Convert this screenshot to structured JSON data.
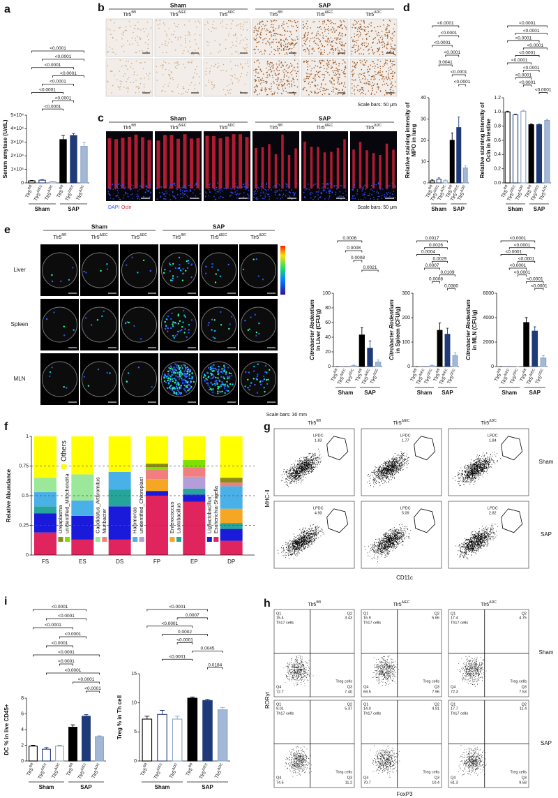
{
  "panel_letters": [
    "a",
    "b",
    "c",
    "d",
    "e",
    "f",
    "g",
    "h",
    "i"
  ],
  "histology_b": {
    "groups": [
      "Sham",
      "SAP"
    ],
    "columns": [
      "Tlr5fl/fl",
      "Tlr5ΔIEC",
      "Tlr5ΔDC",
      "Tlr5fl/fl",
      "Tlr5ΔIEC",
      "Tlr5ΔDC"
    ],
    "scale": "Scale bars: 50 μm"
  },
  "histology_c": {
    "groups": [
      "Sham",
      "SAP"
    ],
    "columns": [
      "Tlr5fl/fl",
      "Tlr5ΔIEC",
      "Tlr5ΔDC",
      "Tlr5fl/fl",
      "Tlr5ΔIEC",
      "Tlr5ΔDC"
    ],
    "stains": [
      "DAPI",
      "Ocln"
    ],
    "scale": "Scale bars: 50 μm"
  },
  "imaging": {
    "groups": [
      "Sham",
      "SAP"
    ],
    "columns": [
      "Tlr5fl/fl",
      "Tlr5ΔIEC",
      "Tlr5ΔDC",
      "Tlr5fl/fl",
      "Tlr5ΔIEC",
      "Tlr5ΔDC"
    ],
    "rows": [
      "Liver",
      "Spleen",
      "MLN"
    ],
    "scale": "Scale bars: 30 mm"
  },
  "flow_g": {
    "columns": [
      "Tlr5fl/fl",
      "Tlr5ΔIEC",
      "Tlr5ΔDC"
    ],
    "rows": [
      "Sham",
      "SAP"
    ],
    "gate": "LPDC",
    "values": [
      "1.83",
      "1.77",
      "1.84",
      "4.90",
      "5.09",
      "2.82"
    ],
    "xlabel": "CD11c",
    "ylabel": "MHC-II"
  },
  "flow_h": {
    "columns": [
      "Tlr5fl/fl",
      "Tlr5ΔIEC",
      "Tlr5ΔDC"
    ],
    "rows": [
      "Sham",
      "SAP"
    ],
    "quadrants": [
      "Q1",
      "Q2",
      "Q3",
      "Q4"
    ],
    "populations": [
      "Th17 cells",
      "Treg cells"
    ],
    "values": [
      [
        "15.4",
        "3.43",
        "7.40",
        "72.7"
      ],
      [
        "16.9",
        "5.66",
        "7.96",
        "69.5"
      ],
      [
        "17.4",
        "4.75",
        "7.53",
        "72.3"
      ],
      [
        "9.01",
        "5.37",
        "11.2",
        "74.5"
      ],
      [
        "14.0",
        "4.91",
        "10.4",
        "70.7"
      ],
      [
        "17.7",
        "11.4",
        "9.58",
        "61.3"
      ]
    ],
    "xlabel": "FoxP3",
    "ylabel": "RORγt"
  },
  "chart_data": [
    {
      "type": "bar",
      "ylabel": [
        "Serum amylase (U/dL)"
      ],
      "categories": [
        "Tlr5fl/fl",
        "Tlr5ΔIEC",
        "Tlr5ΔDC",
        "Tlr5fl/fl",
        "Tlr5ΔIEC",
        "Tlr5ΔDC"
      ],
      "groups": [
        "Sham",
        "SAP"
      ],
      "values": [
        1500,
        2000,
        1000,
        32000,
        35000,
        27000
      ],
      "errors": [
        300,
        500,
        300,
        3000,
        1500,
        3000
      ],
      "fills": [
        "#ffffff",
        "#ffffff",
        "#ffffff",
        "#000000",
        "#1f3a78",
        "#a3b8d6"
      ],
      "strokes": [
        "#000000",
        "#1f3a78",
        "#8aa4c8",
        "#000000",
        "#1f3a78",
        "#8aa4c8"
      ],
      "ylim": [
        0,
        50000
      ],
      "yticks": [
        0,
        {
          "value": 10000,
          "label": "1×10⁴"
        },
        {
          "value": 20000,
          "label": "2×10⁴"
        },
        {
          "value": 30000,
          "label": "3×10⁴"
        },
        {
          "value": 40000,
          "label": "4×10⁴"
        },
        {
          "value": 50000,
          "label": "5×10⁴"
        }
      ],
      "annotations": [
        {
          "from": 0,
          "to": 5,
          "label": "<0.0001"
        },
        {
          "from": 1,
          "to": 5,
          "label": "<0.0001"
        },
        {
          "from": 0,
          "to": 4,
          "label": "<0.0001"
        },
        {
          "from": 2,
          "to": 5,
          "label": "<0.0001"
        },
        {
          "from": 1,
          "to": 4,
          "label": "<0.0001"
        },
        {
          "from": 0,
          "to": 3,
          "label": "<0.0001"
        },
        {
          "from": 2,
          "to": 4,
          "label": "<0.0001"
        },
        {
          "from": 1,
          "to": 3,
          "label": "<0.0001"
        }
      ]
    },
    {
      "type": "bar",
      "ylabel": [
        "Relative staining intensity of",
        "MPO in lung"
      ],
      "categories": [
        "Tlr5fl/fl",
        "Tlr5ΔIEC",
        "Tlr5ΔDC",
        "Tlr5fl/fl",
        "Tlr5ΔIEC",
        "Tlr5ΔDC"
      ],
      "groups": [
        "Sham",
        "SAP"
      ],
      "values": [
        1,
        1.8,
        1,
        20,
        26,
        7
      ],
      "errors": [
        0.5,
        0.6,
        0.4,
        3.5,
        5,
        1
      ],
      "fills": [
        "#ffffff",
        "#ffffff",
        "#ffffff",
        "#000000",
        "#1f3a78",
        "#a3b8d6"
      ],
      "strokes": [
        "#000000",
        "#1f3a78",
        "#8aa4c8",
        "#000000",
        "#1f3a78",
        "#8aa4c8"
      ],
      "ylim": [
        0,
        40
      ],
      "yticks": [
        0,
        10,
        20,
        30,
        40
      ],
      "annotations": [
        {
          "from": 0,
          "to": 4,
          "label": "<0.0001"
        },
        {
          "from": 1,
          "to": 4,
          "label": "<0.0001"
        },
        {
          "from": 0,
          "to": 3,
          "label": "<0.0001"
        },
        {
          "from": 2,
          "to": 4,
          "label": "<0.0001"
        },
        {
          "from": 1,
          "to": 3,
          "label": "0.0041"
        },
        {
          "from": 3,
          "to": 5,
          "label": "<0.0001"
        },
        {
          "from": 4,
          "to": 5,
          "label": "<0.0001"
        }
      ]
    },
    {
      "type": "bar",
      "ylabel": [
        "Relative staining intensity of",
        "Ocln in intestine"
      ],
      "categories": [
        "Tlr5fl/fl",
        "Tlr5ΔIEC",
        "Tlr5ΔDC",
        "Tlr5fl/fl",
        "Tlr5ΔIEC",
        "Tlr5ΔDC"
      ],
      "groups": [
        "Sham",
        "SAP"
      ],
      "values": [
        1.0,
        0.96,
        1.01,
        0.82,
        0.82,
        0.88
      ],
      "errors": [
        0.01,
        0.01,
        0.015,
        0.01,
        0.01,
        0.015
      ],
      "fills": [
        "#ffffff",
        "#ffffff",
        "#ffffff",
        "#000000",
        "#1f3a78",
        "#a3b8d6"
      ],
      "strokes": [
        "#000000",
        "#1f3a78",
        "#8aa4c8",
        "#000000",
        "#1f3a78",
        "#8aa4c8"
      ],
      "ylim": [
        0,
        1.2
      ],
      "yticks": [
        {
          "value": 0,
          "label": "0.0"
        },
        0.2,
        0.4,
        0.6,
        0.8,
        {
          "value": 1,
          "label": "1.0"
        },
        1.2
      ],
      "annotations": [
        {
          "from": 0,
          "to": 5,
          "label": "<0.0001"
        },
        {
          "from": 1,
          "to": 5,
          "label": "<0.0001"
        },
        {
          "from": 0,
          "to": 4,
          "label": "<0.0001"
        },
        {
          "from": 2,
          "to": 5,
          "label": "<0.0001"
        },
        {
          "from": 1,
          "to": 4,
          "label": "<0.0001"
        },
        {
          "from": 0,
          "to": 3,
          "label": "<0.0001"
        },
        {
          "from": 2,
          "to": 4,
          "label": "<0.0001"
        },
        {
          "from": 1,
          "to": 3,
          "label": "<0.0001"
        },
        {
          "from": 2,
          "to": 3,
          "label": "<0.0001"
        },
        {
          "from": 4,
          "to": 5,
          "label": "<0.0001"
        }
      ]
    },
    {
      "type": "bar",
      "ylabel": [
        "Citrobacter Rodentium",
        "in Liver (CFU/g)"
      ],
      "categories": [
        "Tlr5fl/fl",
        "Tlr5ΔIEC",
        "Tlr5ΔDC",
        "Tlr5fl/fl",
        "Tlr5ΔIEC",
        "Tlr5ΔDC"
      ],
      "groups": [
        "Sham",
        "SAP"
      ],
      "values": [
        0,
        0,
        1,
        43,
        25,
        6
      ],
      "errors": [
        0,
        0,
        1,
        10,
        10,
        3
      ],
      "fills": [
        "#ffffff",
        "#ffffff",
        "#ffffff",
        "#000000",
        "#1f3a78",
        "#a3b8d6"
      ],
      "strokes": [
        "#000000",
        "#1f3a78",
        "#8aa4c8",
        "#000000",
        "#1f3a78",
        "#8aa4c8"
      ],
      "ylim": [
        0,
        100
      ],
      "yticks": [
        0,
        20,
        40,
        60,
        80,
        100
      ],
      "annotations": [
        {
          "from": 0,
          "to": 3,
          "label": "0.0006"
        },
        {
          "from": 1,
          "to": 3,
          "label": "0.0008"
        },
        {
          "from": 2,
          "to": 3,
          "label": "0.0008"
        },
        {
          "from": 3,
          "to": 5,
          "label": "0.0021"
        }
      ]
    },
    {
      "type": "bar",
      "ylabel": [
        "Citrobacter Rodentium",
        "in Spleen (CFU/g)"
      ],
      "categories": [
        "Tlr5fl/fl",
        "Tlr5ΔIEC",
        "Tlr5ΔDC",
        "Tlr5fl/fl",
        "Tlr5ΔIEC",
        "Tlr5ΔDC"
      ],
      "groups": [
        "Sham",
        "SAP"
      ],
      "values": [
        0,
        0,
        3,
        148,
        132,
        45
      ],
      "errors": [
        0,
        0,
        3,
        30,
        25,
        12
      ],
      "fills": [
        "#ffffff",
        "#ffffff",
        "#ffffff",
        "#000000",
        "#1f3a78",
        "#a3b8d6"
      ],
      "strokes": [
        "#000000",
        "#1f3a78",
        "#8aa4c8",
        "#000000",
        "#1f3a78",
        "#8aa4c8"
      ],
      "ylim": [
        0,
        300
      ],
      "yticks": [
        0,
        100,
        200,
        300
      ],
      "annotations": [
        {
          "from": 0,
          "to": 4,
          "label": "0.0017"
        },
        {
          "from": 1,
          "to": 4,
          "label": "0.0026"
        },
        {
          "from": 0,
          "to": 3,
          "label": "0.0004"
        },
        {
          "from": 2,
          "to": 4,
          "label": "0.0029"
        },
        {
          "from": 1,
          "to": 3,
          "label": "0.0007"
        },
        {
          "from": 3,
          "to": 5,
          "label": "0.0109"
        },
        {
          "from": 2,
          "to": 3,
          "label": "0.0008"
        },
        {
          "from": 4,
          "to": 5,
          "label": "0.0380"
        }
      ]
    },
    {
      "type": "bar",
      "ylabel": [
        "Citrobacter Rodentium",
        "in MLN (CFU/g)"
      ],
      "categories": [
        "Tlr5fl/fl",
        "Tlr5ΔIEC",
        "Tlr5ΔDC",
        "Tlr5fl/fl",
        "Tlr5ΔIEC",
        "Tlr5ΔDC"
      ],
      "groups": [
        "Sham",
        "SAP"
      ],
      "values": [
        0,
        0,
        0,
        3600,
        2900,
        700
      ],
      "errors": [
        0,
        0,
        0,
        400,
        350,
        200
      ],
      "fills": [
        "#ffffff",
        "#ffffff",
        "#ffffff",
        "#000000",
        "#1f3a78",
        "#a3b8d6"
      ],
      "strokes": [
        "#000000",
        "#1f3a78",
        "#8aa4c8",
        "#000000",
        "#1f3a78",
        "#8aa4c8"
      ],
      "ylim": [
        0,
        6000
      ],
      "yticks": [
        0,
        2000,
        4000,
        6000
      ],
      "annotations": [
        {
          "from": 0,
          "to": 4,
          "label": "<0.0001"
        },
        {
          "from": 1,
          "to": 4,
          "label": "<0.0001"
        },
        {
          "from": 0,
          "to": 3,
          "label": "<0.0001"
        },
        {
          "from": 2,
          "to": 4,
          "label": "<0.0001"
        },
        {
          "from": 1,
          "to": 3,
          "label": "<0.0001"
        },
        {
          "from": 2,
          "to": 3,
          "label": "<0.0001"
        },
        {
          "from": 3,
          "to": 5,
          "label": "<0.0001"
        },
        {
          "from": 4,
          "to": 5,
          "label": "<0.0001"
        }
      ]
    },
    {
      "type": "stacked_bar",
      "ylabel": [
        "Relative Abundance"
      ],
      "categories": [
        "FS",
        "ES",
        "DS",
        "FP",
        "EP",
        "DP"
      ],
      "ylim": [
        0,
        1
      ],
      "yticks": [
        0,
        0.25,
        0.5,
        0.75,
        1
      ],
      "grid": true,
      "series": [
        {
          "name": "Escherichia-Shigella",
          "color": "#e0245e",
          "values": [
            0.19,
            0.13,
            0.13,
            0.5,
            0.45,
            0.12
          ]
        },
        {
          "name": "Ligilactobacillus",
          "color": "#1a1adb",
          "values": [
            0.16,
            0.2,
            0.28,
            0.04,
            0.06,
            0.1
          ]
        },
        {
          "name": "Lactobacillus",
          "color": "#26a69a",
          "values": [
            0.06,
            0,
            0.14,
            0,
            0.05,
            0.05
          ]
        },
        {
          "name": "Enterococcus",
          "color": "#f5a623",
          "values": [
            0,
            0,
            0,
            0.1,
            0,
            0.12
          ]
        },
        {
          "name": "unidentified_Chloroplast",
          "color": "#b39ddb",
          "values": [
            0,
            0,
            0,
            0,
            0.1,
            0
          ]
        },
        {
          "name": "Halomonas",
          "color": "#4ab0e8",
          "values": [
            0.12,
            0.13,
            0.15,
            0,
            0,
            0.19
          ]
        },
        {
          "name": "Muribacter",
          "color": "#f08080",
          "values": [
            0,
            0,
            0,
            0.08,
            0.08,
            0.03
          ]
        },
        {
          "name": "Candidatus_Arthromitus",
          "color": "#9be89b",
          "values": [
            0.12,
            0.22,
            0,
            0,
            0,
            0
          ]
        },
        {
          "name": "unidentified_Mitochondria",
          "color": "#7fe000",
          "values": [
            0,
            0,
            0,
            0.02,
            0.06,
            0
          ]
        },
        {
          "name": "Ureaplasma",
          "color": "#8b8b1a",
          "values": [
            0,
            0,
            0,
            0.03,
            0,
            0.04
          ]
        },
        {
          "name": "Others",
          "color": "#ffff00",
          "values": [
            0.35,
            0.32,
            0.3,
            0.23,
            0.2,
            0.35
          ]
        }
      ]
    },
    {
      "type": "bar",
      "ylabel": [
        "DC % in live CD45+"
      ],
      "categories": [
        "Tlr5fl/fl",
        "Tlr5ΔIEC",
        "Tlr5ΔDC",
        "Tlr5fl/fl",
        "Tlr5ΔIEC",
        "Tlr5ΔDC"
      ],
      "groups": [
        "Sham",
        "SAP"
      ],
      "values": [
        1.9,
        1.5,
        1.9,
        4.3,
        5.7,
        3.1
      ],
      "errors": [
        0.1,
        0.2,
        0.1,
        0.3,
        0.2,
        0.1
      ],
      "fills": [
        "#ffffff",
        "#ffffff",
        "#ffffff",
        "#000000",
        "#1f3a78",
        "#a3b8d6"
      ],
      "strokes": [
        "#000000",
        "#1f3a78",
        "#8aa4c8",
        "#000000",
        "#1f3a78",
        "#8aa4c8"
      ],
      "ylim": [
        0,
        8
      ],
      "yticks": [
        0,
        2,
        4,
        6,
        8
      ],
      "annotations": [
        {
          "from": 0,
          "to": 4,
          "label": "<0.0001"
        },
        {
          "from": 1,
          "to": 4,
          "label": "<0.0001"
        },
        {
          "from": 0,
          "to": 3,
          "label": "<0.0001"
        },
        {
          "from": 2,
          "to": 4,
          "label": "<0.0001"
        },
        {
          "from": 1,
          "to": 3,
          "label": "<0.0001"
        },
        {
          "from": 0,
          "to": 5,
          "label": "<0.0001"
        },
        {
          "from": 2,
          "to": 3,
          "label": "<0.0001"
        },
        {
          "from": 1,
          "to": 5,
          "label": "<0.0001"
        },
        {
          "from": 3,
          "to": 5,
          "label": "<0.0001"
        },
        {
          "from": 4,
          "to": 5,
          "label": "<0.0001"
        }
      ]
    },
    {
      "type": "bar",
      "ylabel": [
        "Treg % in Th cell"
      ],
      "categories": [
        "Tlr5fl/fl",
        "Tlr5ΔIEC",
        "Tlr5ΔDC",
        "Tlr5fl/fl",
        "Tlr5ΔIEC",
        "Tlr5ΔDC"
      ],
      "groups": [
        "Sham",
        "SAP"
      ],
      "values": [
        7.2,
        8.0,
        7.2,
        10.8,
        10.4,
        8.8
      ],
      "errors": [
        0.5,
        0.7,
        0.5,
        0.2,
        0.2,
        0.4
      ],
      "fills": [
        "#ffffff",
        "#ffffff",
        "#ffffff",
        "#000000",
        "#1f3a78",
        "#a3b8d6"
      ],
      "strokes": [
        "#000000",
        "#1f3a78",
        "#8aa4c8",
        "#000000",
        "#1f3a78",
        "#8aa4c8"
      ],
      "ylim": [
        0,
        15
      ],
      "yticks": [
        0,
        5,
        10,
        15
      ],
      "annotations": [
        {
          "from": 0,
          "to": 4,
          "label": "<0.0001"
        },
        {
          "from": 2,
          "to": 4,
          "label": "0.0007"
        },
        {
          "from": 0,
          "to": 3,
          "label": "<0.0001"
        },
        {
          "from": 1,
          "to": 4,
          "label": "0.0002"
        },
        {
          "from": 2,
          "to": 3,
          "label": "<0.0001"
        },
        {
          "from": 3,
          "to": 5,
          "label": "0.0045"
        },
        {
          "from": 1,
          "to": 3,
          "label": "<0.0001"
        },
        {
          "from": 4,
          "to": 5,
          "label": "0.0184"
        }
      ]
    }
  ]
}
